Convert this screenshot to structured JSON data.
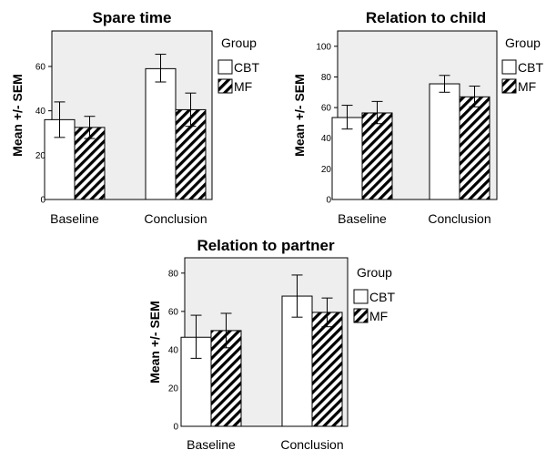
{
  "legend": {
    "title": "Group",
    "items": [
      {
        "label": "CBT",
        "fill": "#ffffff"
      },
      {
        "label": "MF",
        "fill": "hatch"
      }
    ]
  },
  "colors": {
    "plot_bg": "#eeeeee",
    "bar_stroke": "#000000",
    "hatch": "#000000"
  },
  "chart_data": [
    {
      "type": "bar",
      "title": "Spare time",
      "ylabel": "Mean +/- SEM",
      "xlabel": "",
      "categories": [
        "Baseline",
        "Conclusion"
      ],
      "ylim": [
        0,
        76
      ],
      "yticks": [
        0,
        20,
        40,
        60
      ],
      "series": [
        {
          "name": "CBT",
          "values": [
            36,
            59
          ],
          "err_low": [
            28,
            53
          ],
          "err_high": [
            44,
            65.5
          ]
        },
        {
          "name": "MF",
          "values": [
            32.5,
            40.5
          ],
          "err_low": [
            27.5,
            33
          ],
          "err_high": [
            37.5,
            48
          ]
        }
      ],
      "legend_position": "right",
      "grid": false
    },
    {
      "type": "bar",
      "title": "Relation to child",
      "ylabel": "Mean +/- SEM",
      "xlabel": "",
      "categories": [
        "Baseline",
        "Conclusion"
      ],
      "ylim": [
        0,
        110
      ],
      "yticks": [
        0,
        20,
        40,
        60,
        80,
        100
      ],
      "series": [
        {
          "name": "CBT",
          "values": [
            53.5,
            75.5
          ],
          "err_low": [
            46,
            70
          ],
          "err_high": [
            61.5,
            81
          ]
        },
        {
          "name": "MF",
          "values": [
            56.5,
            67
          ],
          "err_low": [
            49.5,
            60.5
          ],
          "err_high": [
            64,
            74
          ]
        }
      ],
      "legend_position": "right",
      "grid": false
    },
    {
      "type": "bar",
      "title": "Relation to partner",
      "ylabel": "Mean +/- SEM",
      "xlabel": "",
      "categories": [
        "Baseline",
        "Conclusion"
      ],
      "ylim": [
        0,
        88
      ],
      "yticks": [
        0,
        20,
        40,
        60,
        80
      ],
      "series": [
        {
          "name": "CBT",
          "values": [
            46.5,
            68
          ],
          "err_low": [
            35.5,
            57
          ],
          "err_high": [
            58,
            79
          ]
        },
        {
          "name": "MF",
          "values": [
            50,
            59.5
          ],
          "err_low": [
            41,
            52
          ],
          "err_high": [
            59,
            67
          ]
        }
      ],
      "legend_position": "right",
      "grid": false
    }
  ]
}
